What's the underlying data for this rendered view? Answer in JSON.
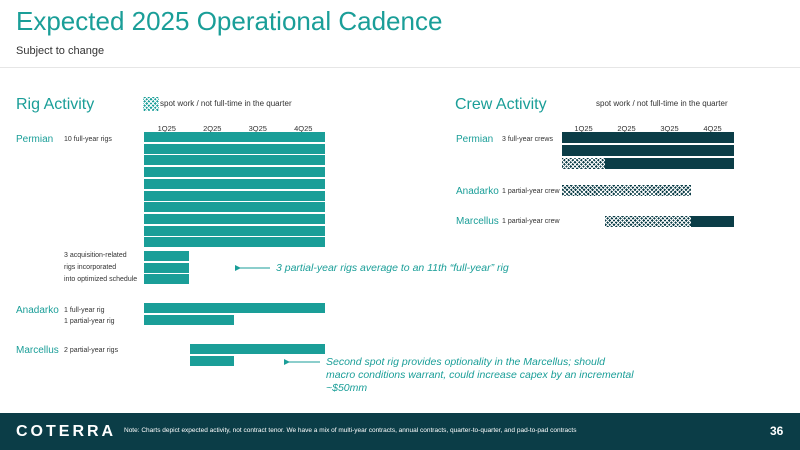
{
  "page": {
    "title": "Expected 2025 Operational Cadence",
    "subtitle": "Subject to change",
    "note": "Note: Charts depict expected activity, not contract tenor. We have a mix of multi-year contracts, annual contracts, quarter-to-quarter, and pad-to-pad contracts",
    "logo": "COTERRA",
    "page_number": "36"
  },
  "colors": {
    "teal": "#1a9e98",
    "dark_teal": "#0b3d47",
    "footer": "#0b3d47"
  },
  "chart_data": [
    {
      "type": "gantt",
      "title": "Rig Activity",
      "legend": "spot work / not full-time in the quarter",
      "quarters": [
        "1Q25",
        "2Q25",
        "3Q25",
        "4Q25"
      ],
      "groups": [
        {
          "region": "Permian",
          "label": "10 full-year rigs",
          "rows": [
            [
              0,
              4
            ],
            [
              0,
              4
            ],
            [
              0,
              4
            ],
            [
              0,
              4
            ],
            [
              0,
              4
            ],
            [
              0,
              4
            ],
            [
              0,
              4
            ],
            [
              0,
              4
            ],
            [
              0,
              4
            ],
            [
              0,
              4
            ]
          ]
        },
        {
          "region": "",
          "label": "3 acquisition-related rigs incorporated into optimized schedule",
          "label_lines": [
            "3 acquisition-related",
            "rigs incorporated",
            "into optimized schedule"
          ],
          "rows": [
            [
              0,
              1
            ],
            [
              0,
              1
            ],
            [
              0,
              1
            ]
          ]
        },
        {
          "region": "Anadarko",
          "label_lines": [
            "1 full-year rig",
            "1 partial-year rig"
          ],
          "rows": [
            [
              0,
              4
            ],
            [
              0,
              2
            ]
          ]
        },
        {
          "region": "Marcellus",
          "label": "2 partial-year rigs",
          "rows": [
            [
              1,
              4
            ],
            [
              1,
              2
            ]
          ]
        }
      ],
      "annotations": [
        "3 partial-year rigs average to an 11th “full-year” rig",
        "Second spot rig provides optionality in the Marcellus; should macro conditions warrant, could increase capex by an incremental ~$50mm"
      ]
    },
    {
      "type": "gantt",
      "title": "Crew Activity",
      "legend": "spot work / not full-time in the quarter",
      "quarters": [
        "1Q25",
        "2Q25",
        "3Q25",
        "4Q25"
      ],
      "groups": [
        {
          "region": "Permian",
          "label": "3 full-year crews",
          "rows": [
            [
              {
                "start": 0,
                "end": 4,
                "spot": false
              }
            ],
            [
              {
                "start": 0,
                "end": 4,
                "spot": false
              }
            ],
            [
              {
                "start": 0,
                "end": 1,
                "spot": true
              },
              {
                "start": 1,
                "end": 4,
                "spot": false
              }
            ]
          ]
        },
        {
          "region": "Anadarko",
          "label": "1 partial-year crew",
          "rows": [
            [
              {
                "start": 0,
                "end": 3,
                "spot": true
              }
            ]
          ]
        },
        {
          "region": "Marcellus",
          "label": "1 partial-year crew",
          "rows": [
            [
              {
                "start": 1,
                "end": 3,
                "spot": true
              },
              {
                "start": 3,
                "end": 4,
                "spot": false
              }
            ]
          ]
        }
      ]
    }
  ]
}
